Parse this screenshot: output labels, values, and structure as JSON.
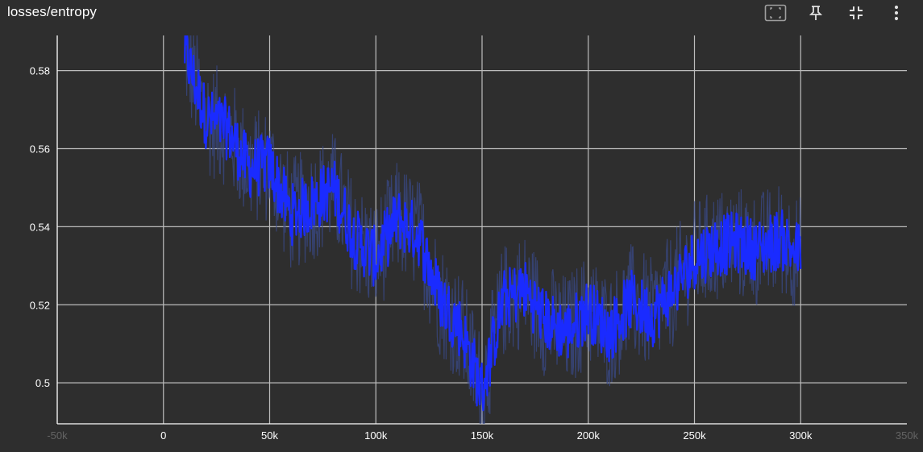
{
  "card": {
    "title": "losses/entropy"
  },
  "toolbar": {
    "icons": [
      "fit-domain-icon",
      "pin-icon",
      "collapse-icon",
      "more-vert-icon"
    ]
  },
  "colors": {
    "background": "#2e2e2e",
    "grid": "#bdbdbd",
    "axis": "#ffffff",
    "series_main": "#1a2bff",
    "series_raw": "#3a4b8f",
    "text": "#ffffff"
  },
  "chart_data": {
    "type": "line",
    "title": "losses/entropy",
    "xlabel": "",
    "ylabel": "",
    "xlim": [
      -50000,
      350000
    ],
    "ylim": [
      0.49,
      0.59
    ],
    "x_ticks": [
      -50000,
      0,
      50000,
      100000,
      150000,
      200000,
      250000,
      300000,
      350000
    ],
    "x_tick_labels": [
      "-50k",
      "0",
      "50k",
      "100k",
      "150k",
      "200k",
      "250k",
      "300k",
      "350k"
    ],
    "y_ticks": [
      0.5,
      0.52,
      0.54,
      0.56,
      0.58
    ],
    "y_tick_labels": [
      "0.5",
      "0.52",
      "0.54",
      "0.56",
      "0.58"
    ],
    "grid": true,
    "series": [
      {
        "style": "smoothed",
        "x": [
          10000,
          20000,
          30000,
          40000,
          50000,
          60000,
          70000,
          80000,
          90000,
          100000,
          110000,
          120000,
          130000,
          140000,
          150000,
          160000,
          170000,
          180000,
          190000,
          200000,
          210000,
          220000,
          230000,
          240000,
          250000,
          260000,
          270000,
          280000,
          290000,
          300000
        ],
        "values": [
          0.585,
          0.568,
          0.565,
          0.555,
          0.556,
          0.543,
          0.546,
          0.55,
          0.537,
          0.532,
          0.542,
          0.538,
          0.522,
          0.514,
          0.498,
          0.521,
          0.524,
          0.516,
          0.513,
          0.519,
          0.513,
          0.521,
          0.517,
          0.524,
          0.532,
          0.535,
          0.536,
          0.534,
          0.537,
          0.533
        ]
      }
    ]
  }
}
